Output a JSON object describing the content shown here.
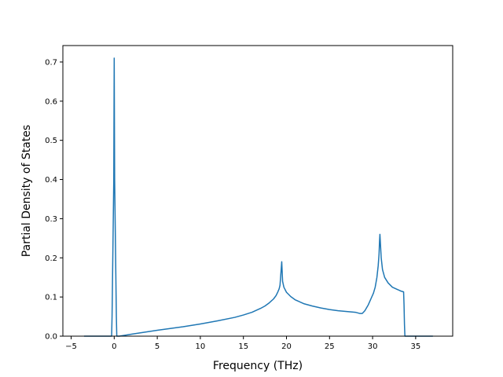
{
  "chart_data": {
    "type": "line",
    "title": "",
    "xlabel": "Frequency (THz)",
    "ylabel": "Partial Density of States",
    "xlim": [
      -5.96,
      39.3
    ],
    "ylim": [
      0,
      0.742
    ],
    "xticks": [
      -5,
      0,
      5,
      10,
      15,
      20,
      25,
      30,
      35
    ],
    "yticks": [
      0.0,
      0.1,
      0.2,
      0.3,
      0.4,
      0.5,
      0.6,
      0.7
    ],
    "xtick_labels": [
      "−5",
      "0",
      "5",
      "10",
      "15",
      "20",
      "25",
      "30",
      "35"
    ],
    "ytick_labels": [
      "0.0",
      "0.1",
      "0.2",
      "0.3",
      "0.4",
      "0.5",
      "0.6",
      "0.7"
    ],
    "grid": false,
    "legend": "none",
    "series": [
      {
        "color": "#1f77b4",
        "x": [
          -3.5,
          -0.3,
          -0.25,
          -0.05,
          0.0,
          0.05,
          0.25,
          0.3,
          0.6,
          2,
          5,
          8,
          10,
          12,
          14,
          15,
          16,
          17,
          17.5,
          18,
          18.5,
          18.8,
          19.0,
          19.15,
          19.25,
          19.35,
          19.45,
          19.55,
          19.7,
          20.0,
          20.5,
          21,
          22,
          23,
          24,
          25,
          26,
          27,
          28,
          28.5,
          28.8,
          29.1,
          29.5,
          29.8,
          30.1,
          30.3,
          30.5,
          30.65,
          30.75,
          30.8,
          30.85,
          30.9,
          31.0,
          31.15,
          31.4,
          31.8,
          32.3,
          32.8,
          33.3,
          33.6,
          33.65,
          33.7,
          33.75,
          34.0,
          37.0
        ],
        "y": [
          0.0,
          0.0,
          0.05,
          0.4,
          0.71,
          0.4,
          0.05,
          0.0,
          0.0,
          0.005,
          0.015,
          0.024,
          0.031,
          0.039,
          0.048,
          0.054,
          0.061,
          0.071,
          0.077,
          0.085,
          0.095,
          0.104,
          0.113,
          0.121,
          0.13,
          0.16,
          0.19,
          0.14,
          0.125,
          0.112,
          0.101,
          0.093,
          0.083,
          0.077,
          0.072,
          0.068,
          0.065,
          0.063,
          0.061,
          0.058,
          0.058,
          0.065,
          0.08,
          0.095,
          0.11,
          0.125,
          0.15,
          0.18,
          0.21,
          0.24,
          0.26,
          0.24,
          0.2,
          0.17,
          0.15,
          0.136,
          0.125,
          0.12,
          0.115,
          0.113,
          0.08,
          0.03,
          0.0,
          0.0,
          0.0
        ]
      }
    ]
  }
}
